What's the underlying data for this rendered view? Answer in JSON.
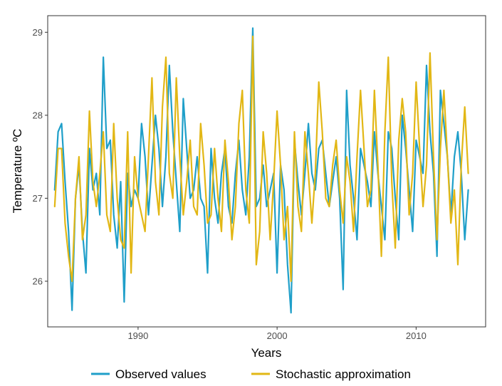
{
  "chart_data": {
    "type": "line",
    "title": "",
    "xlabel": "Years",
    "ylabel": "Temperature ºC",
    "xlim": [
      1983.5,
      2015.0
    ],
    "ylim": [
      25.45,
      29.2
    ],
    "x_ticks": [
      1990,
      2000,
      2010
    ],
    "x_tick_labels": [
      "1990",
      "2000",
      "2010"
    ],
    "y_ticks": [
      26,
      27,
      28,
      29
    ],
    "y_tick_labels": [
      "26",
      "27",
      "28",
      "29"
    ],
    "grid": false,
    "legend_position": "bottom",
    "x": [
      1984.0,
      1984.25,
      1984.5,
      1984.75,
      1985.0,
      1985.25,
      1985.5,
      1985.75,
      1986.0,
      1986.25,
      1986.5,
      1986.75,
      1987.0,
      1987.25,
      1987.5,
      1987.75,
      1988.0,
      1988.25,
      1988.5,
      1988.75,
      1989.0,
      1989.25,
      1989.5,
      1989.75,
      1990.0,
      1990.25,
      1990.5,
      1990.75,
      1991.0,
      1991.25,
      1991.5,
      1991.75,
      1992.0,
      1992.25,
      1992.5,
      1992.75,
      1993.0,
      1993.25,
      1993.5,
      1993.75,
      1994.0,
      1994.25,
      1994.5,
      1994.75,
      1995.0,
      1995.25,
      1995.5,
      1995.75,
      1996.0,
      1996.25,
      1996.5,
      1996.75,
      1997.0,
      1997.25,
      1997.5,
      1997.75,
      1998.0,
      1998.25,
      1998.5,
      1998.75,
      1999.0,
      1999.25,
      1999.5,
      1999.75,
      2000.0,
      2000.25,
      2000.5,
      2000.75,
      2001.0,
      2001.25,
      2001.5,
      2001.75,
      2002.0,
      2002.25,
      2002.5,
      2002.75,
      2003.0,
      2003.25,
      2003.5,
      2003.75,
      2004.0,
      2004.25,
      2004.5,
      2004.75,
      2005.0,
      2005.25,
      2005.5,
      2005.75,
      2006.0,
      2006.25,
      2006.5,
      2006.75,
      2007.0,
      2007.25,
      2007.5,
      2007.75,
      2008.0,
      2008.25,
      2008.5,
      2008.75,
      2009.0,
      2009.25,
      2009.5,
      2009.75,
      2010.0,
      2010.25,
      2010.5,
      2010.75,
      2011.0,
      2011.25,
      2011.5,
      2011.75,
      2012.0,
      2012.25,
      2012.5,
      2012.75,
      2013.0,
      2013.25,
      2013.5,
      2013.75
    ],
    "series": [
      {
        "name": "Observed values",
        "color": "#1f9fc9",
        "values": [
          27.1,
          27.8,
          27.9,
          27.2,
          26.6,
          25.65,
          27.0,
          27.4,
          26.6,
          26.1,
          27.6,
          27.1,
          27.3,
          26.8,
          28.7,
          27.6,
          27.7,
          26.8,
          26.4,
          27.2,
          25.75,
          27.3,
          26.9,
          27.1,
          27.0,
          27.9,
          27.5,
          26.8,
          27.4,
          28.0,
          27.6,
          26.9,
          27.5,
          28.6,
          27.8,
          27.2,
          26.6,
          28.2,
          27.6,
          27.0,
          27.1,
          27.5,
          27.0,
          26.9,
          26.1,
          27.6,
          27.0,
          26.7,
          27.3,
          27.6,
          26.9,
          26.7,
          27.3,
          27.7,
          27.1,
          26.8,
          27.5,
          29.05,
          26.9,
          27.0,
          27.4,
          26.9,
          27.1,
          27.3,
          26.1,
          27.4,
          27.1,
          26.2,
          25.62,
          27.7,
          27.2,
          26.8,
          27.3,
          27.9,
          27.3,
          27.1,
          27.6,
          27.7,
          27.3,
          26.9,
          27.2,
          27.5,
          27.0,
          25.9,
          28.3,
          27.4,
          27.0,
          26.5,
          27.6,
          27.4,
          27.2,
          26.9,
          27.8,
          27.3,
          26.9,
          26.5,
          27.8,
          27.6,
          27.0,
          26.5,
          28.0,
          27.6,
          27.1,
          26.6,
          27.7,
          27.5,
          27.3,
          28.6,
          27.8,
          27.3,
          26.3,
          28.3,
          27.9,
          27.5,
          26.8,
          27.5,
          27.8,
          27.3,
          26.5,
          27.1
        ]
      },
      {
        "name": "Stochastic approximation",
        "color": "#e2b715",
        "values": [
          26.9,
          27.6,
          27.6,
          26.7,
          26.3,
          26.0,
          27.0,
          27.5,
          26.5,
          26.8,
          28.05,
          27.2,
          26.9,
          27.3,
          27.8,
          26.8,
          26.6,
          27.9,
          27.0,
          26.5,
          26.4,
          27.8,
          26.1,
          27.5,
          27.0,
          26.8,
          26.6,
          27.5,
          28.45,
          27.2,
          26.8,
          28.1,
          28.7,
          27.3,
          27.0,
          28.45,
          27.5,
          26.8,
          27.2,
          27.7,
          26.9,
          26.8,
          27.9,
          27.4,
          26.7,
          26.8,
          27.6,
          27.0,
          26.6,
          27.7,
          27.2,
          26.5,
          26.9,
          27.9,
          28.3,
          27.1,
          26.7,
          28.95,
          26.2,
          26.6,
          27.8,
          27.3,
          26.5,
          27.2,
          28.05,
          27.4,
          26.5,
          26.9,
          26.0,
          27.8,
          26.9,
          26.6,
          27.8,
          27.3,
          26.7,
          27.3,
          28.4,
          27.8,
          27.0,
          26.9,
          27.4,
          27.7,
          27.1,
          26.7,
          27.5,
          27.2,
          26.6,
          27.5,
          28.3,
          27.6,
          26.9,
          27.1,
          28.3,
          27.4,
          26.3,
          27.8,
          28.7,
          27.2,
          26.4,
          27.7,
          28.2,
          27.8,
          26.8,
          27.3,
          28.4,
          27.6,
          26.9,
          27.4,
          28.75,
          27.5,
          26.5,
          27.6,
          28.3,
          27.5,
          26.7,
          27.1,
          26.2,
          27.4,
          28.1,
          27.3
        ]
      }
    ]
  }
}
